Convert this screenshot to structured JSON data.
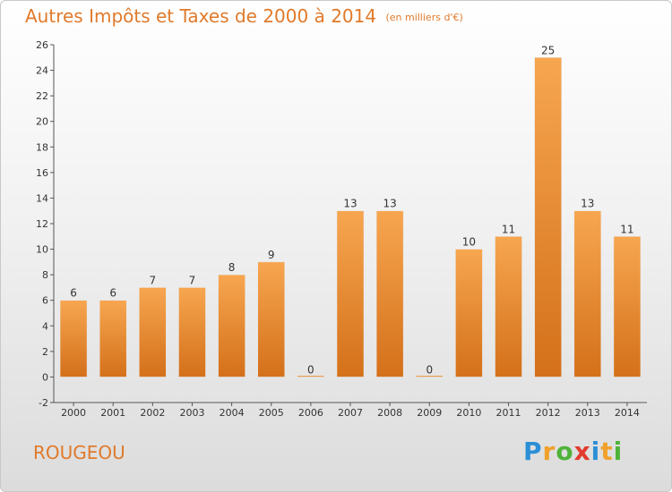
{
  "title": {
    "main": "Autres Impôts et Taxes de 2000 à 2014",
    "unit": "(en milliers d'€)"
  },
  "commune": "ROUGEOU",
  "logo": {
    "text": "Proxiti",
    "letters": [
      "P",
      "r",
      "o",
      "x",
      "i",
      "t",
      "i"
    ]
  },
  "colors": {
    "bar_light": "#f7a650",
    "bar_dark": "#d4701a",
    "accent_text": "#e07a2b"
  },
  "chart_data": {
    "type": "bar",
    "title": "Autres Impôts et Taxes de 2000 à 2014",
    "subtitle": "(en milliers d'€)",
    "categories": [
      "2000",
      "2001",
      "2002",
      "2003",
      "2004",
      "2005",
      "2006",
      "2007",
      "2008",
      "2009",
      "2010",
      "2011",
      "2012",
      "2013",
      "2014"
    ],
    "values": [
      6,
      6,
      7,
      7,
      8,
      9,
      0,
      13,
      13,
      0,
      10,
      11,
      25,
      13,
      11
    ],
    "data_labels": [
      "6",
      "6",
      "7",
      "7",
      "8",
      "9",
      "0",
      "13",
      "13",
      "0",
      "10",
      "11",
      "25",
      "13",
      "11"
    ],
    "ylim": [
      -2,
      26
    ],
    "yticks": [
      -2,
      0,
      2,
      4,
      6,
      8,
      10,
      12,
      14,
      16,
      18,
      20,
      22,
      24,
      26
    ],
    "xlabel": "",
    "ylabel": "",
    "grid": false,
    "legend": "none"
  }
}
